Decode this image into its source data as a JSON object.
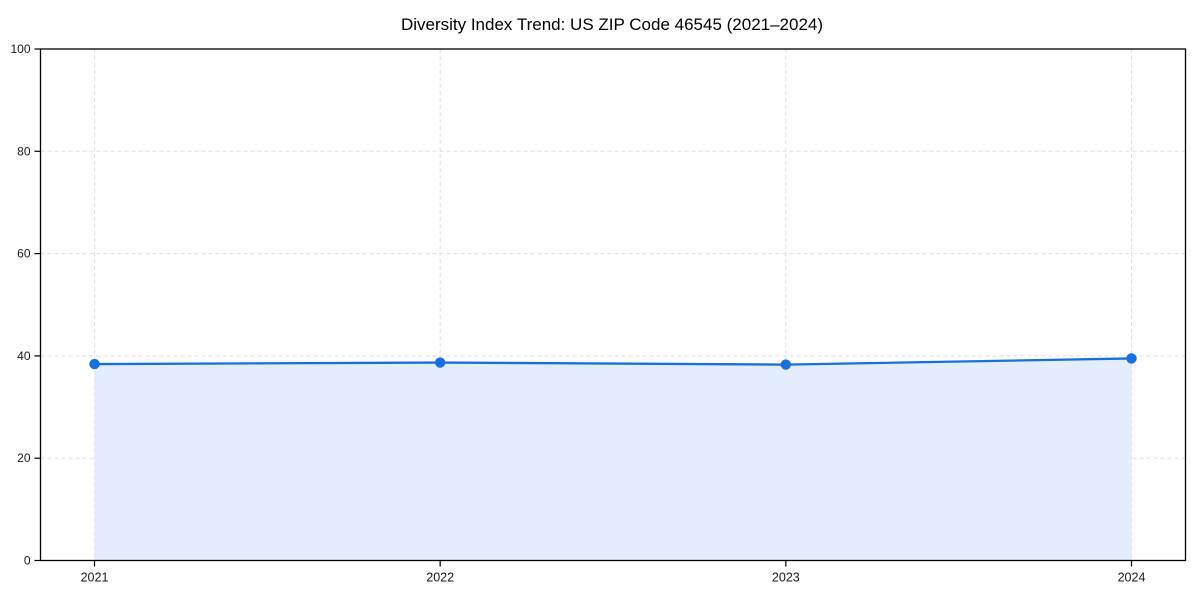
{
  "chart_data": {
    "type": "area",
    "title": "Diversity Index Trend: US ZIP Code 46545 (2021–2024)",
    "series_name": "Diversity Index",
    "x": [
      2021,
      2022,
      2023,
      2024
    ],
    "values": [
      38.4,
      38.7,
      38.3,
      39.5
    ],
    "xticks": [
      "2021",
      "2022",
      "2023",
      "2024"
    ],
    "yticks": [
      0,
      20,
      40,
      60,
      80,
      100
    ],
    "ylim": [
      0,
      100
    ],
    "xlabel": "",
    "ylabel": "",
    "grid": true,
    "grid_style": "dashed",
    "legend_position": "none",
    "markers": true,
    "colors": {
      "line": "#1a6fe0",
      "marker": "#1a6fe0",
      "fill": "#e3edfb",
      "grid": "#e0e0e0",
      "axis": "#000000",
      "tick_label": "#1a1a1a",
      "title": "#000000",
      "background": "#ffffff"
    }
  }
}
